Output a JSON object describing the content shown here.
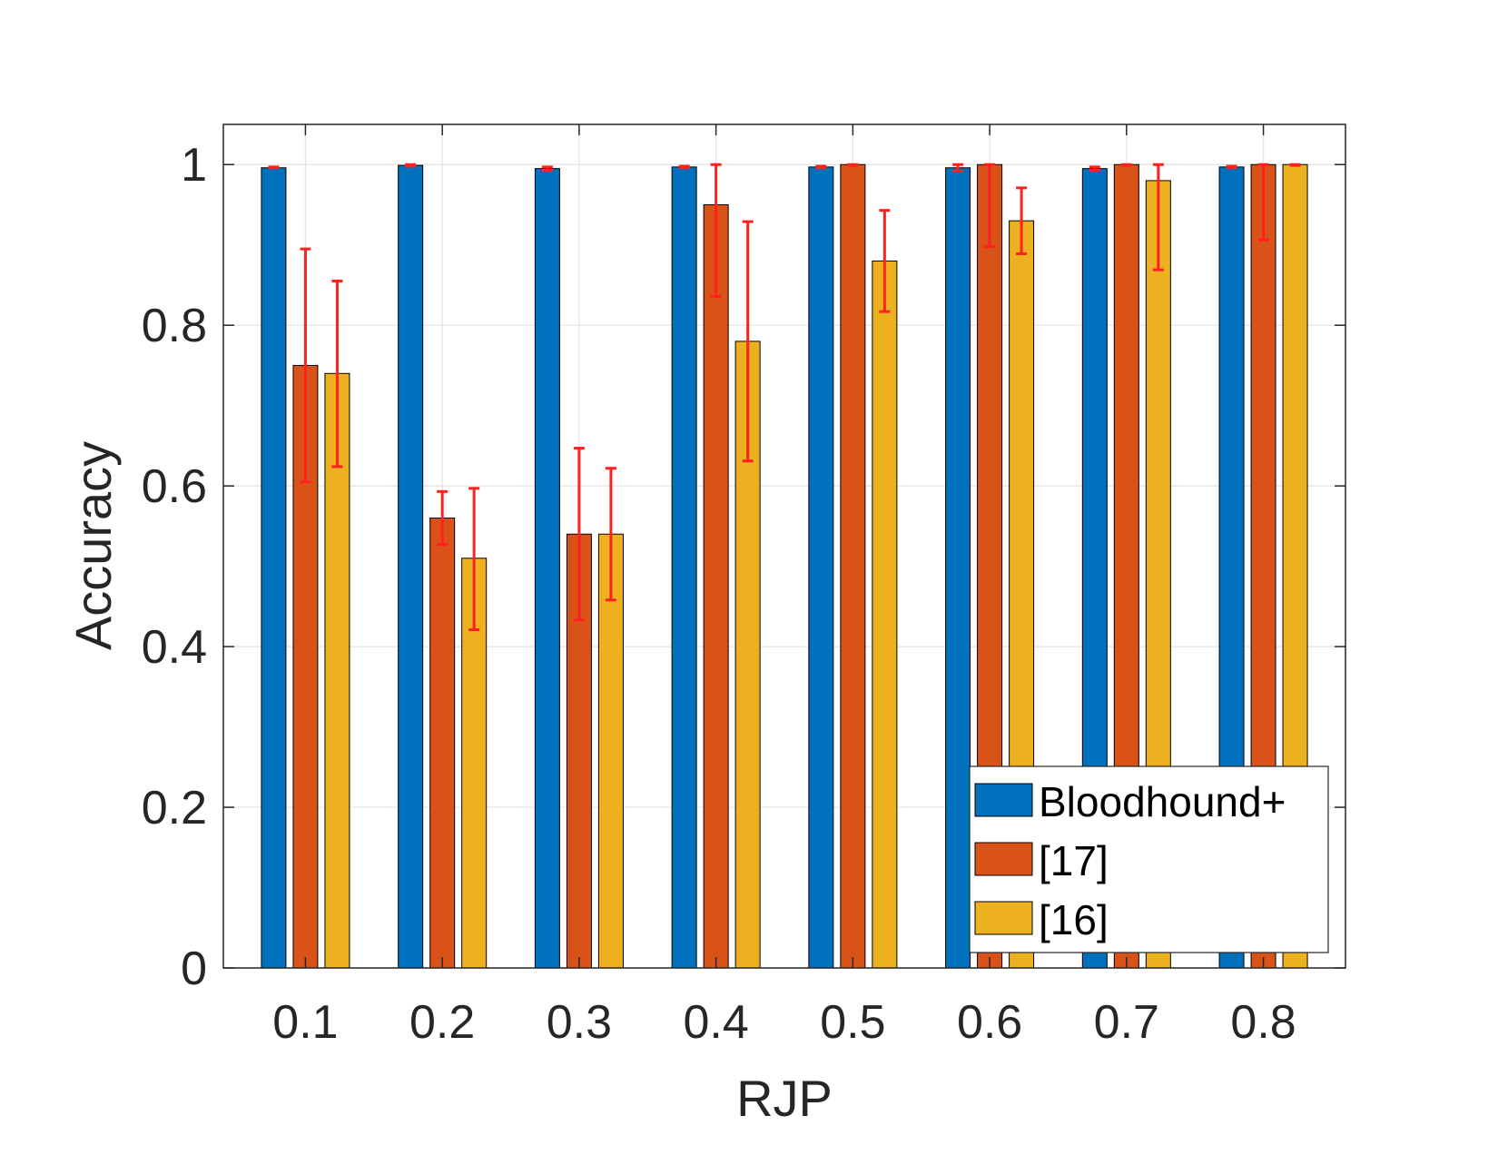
{
  "chart_data": {
    "type": "bar",
    "xlabel": "RJP",
    "ylabel": "Accuracy",
    "categories": [
      "0.1",
      "0.2",
      "0.3",
      "0.4",
      "0.5",
      "0.6",
      "0.7",
      "0.8"
    ],
    "ylim": [
      0,
      1.05
    ],
    "yticks": [
      0,
      0.2,
      0.4,
      0.6,
      0.8,
      1
    ],
    "ytick_labels": [
      "0",
      "0.2",
      "0.4",
      "0.6",
      "0.8",
      "1"
    ],
    "grid": true,
    "legend_position": "bottom-right",
    "error_bar_color": "#ff2020",
    "series": [
      {
        "name": "Bloodhound+",
        "color": "#0072bd",
        "values": [
          0.996,
          0.999,
          0.995,
          0.997,
          0.997,
          0.996,
          0.995,
          0.997
        ],
        "err_low": [
          0.996,
          0.998,
          0.993,
          0.996,
          0.996,
          0.992,
          0.993,
          0.996
        ],
        "err_high": [
          0.997,
          1.0,
          0.997,
          0.998,
          0.998,
          1.0,
          0.997,
          0.998
        ]
      },
      {
        "name": "[17]",
        "color": "#d95319",
        "values": [
          0.75,
          0.56,
          0.54,
          0.95,
          1.0,
          1.0,
          1.0,
          1.0
        ],
        "err_low": [
          0.605,
          0.527,
          0.433,
          0.836,
          0.999,
          0.898,
          0.999,
          0.906
        ],
        "err_high": [
          0.895,
          0.593,
          0.647,
          1.0,
          1.0,
          1.0,
          1.0,
          1.0
        ]
      },
      {
        "name": "[16]",
        "color": "#edb120",
        "values": [
          0.74,
          0.51,
          0.54,
          0.78,
          0.88,
          0.93,
          0.98,
          1.0
        ],
        "err_low": [
          0.624,
          0.421,
          0.458,
          0.631,
          0.817,
          0.889,
          0.869,
          0.999
        ],
        "err_high": [
          0.855,
          0.597,
          0.622,
          0.929,
          0.943,
          0.971,
          1.0,
          1.0
        ]
      }
    ]
  }
}
